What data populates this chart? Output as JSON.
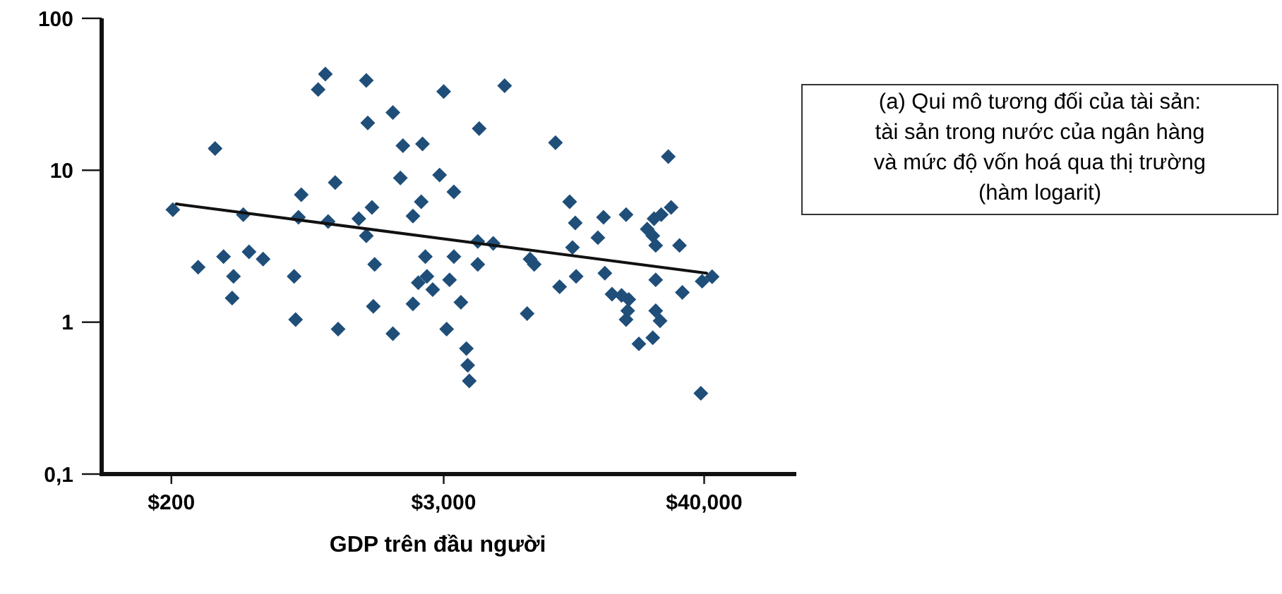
{
  "chart_data": {
    "type": "scatter",
    "xlabel": "GDP trên đầu người",
    "log": "xy",
    "xlim": [
      100,
      100000
    ],
    "ylim": [
      0.1,
      100
    ],
    "xticks": [
      {
        "value": 200,
        "label": "$200"
      },
      {
        "value": 3000,
        "label": "$3,000"
      },
      {
        "value": 40000,
        "label": "$40,000"
      }
    ],
    "yticks": [
      100,
      10,
      1,
      {
        "value": 0.1,
        "label": "0,1"
      }
    ],
    "grid": false,
    "annotations": [
      "(a) Qui mô tương đối của tài sản:\ntài sản trong nước của ngân hàng\nvà mức độ vốn hoá qua thị trường\n(hàm logarit)"
    ],
    "series": [
      {
        "color": "#1f4e79",
        "marker": "diamond",
        "x": [
          203,
          261,
          309,
          336,
          371,
          366,
          409,
          433,
          498,
          678,
          688,
          708,
          728,
          861,
          925,
          951,
          1020,
          1050,
          1290,
          1390,
          1410,
          1390,
          1470,
          1510,
          1490,
          1810,
          1810,
          1950,
          2000,
          2210,
          2400,
          2430,
          2500,
          2330,
          2690,
          2210,
          2540,
          3000,
          2880,
          3320,
          3180,
          3090,
          3320,
          3560,
          3760,
          3810,
          3870,
          4210,
          4210,
          4270,
          4910,
          5500,
          6880,
          7080,
          7380,
          9120,
          9500,
          10500,
          10800,
          11100,
          11200,
          13900,
          14700,
          14900,
          16000,
          17600,
          18900,
          18700,
          18400,
          18400,
          20900,
          22700,
          24300,
          26100,
          28800,
          24000,
          24700,
          24000,
          24700,
          25800,
          24700,
          28000,
          31300,
          32200,
          39200,
          43300,
          38700
        ],
        "values": [
          5.5,
          2.3,
          13.9,
          2.7,
          2.0,
          1.44,
          5.1,
          2.9,
          2.6,
          2.0,
          1.04,
          4.9,
          6.9,
          34,
          43,
          4.6,
          8.3,
          0.9,
          4.8,
          39,
          20.5,
          3.7,
          5.7,
          2.4,
          1.27,
          24,
          0.84,
          8.9,
          14.5,
          5.0,
          6.2,
          14.9,
          2.7,
          1.82,
          1.64,
          1.32,
          2.0,
          33,
          9.3,
          7.2,
          1.9,
          0.9,
          2.7,
          1.35,
          0.67,
          0.52,
          0.41,
          3.4,
          2.4,
          18.8,
          3.3,
          36,
          1.14,
          2.6,
          2.4,
          15.2,
          1.71,
          6.2,
          3.1,
          4.5,
          2.0,
          3.6,
          4.9,
          2.1,
          1.53,
          1.5,
          1.41,
          1.19,
          1.04,
          5.1,
          0.72,
          4.1,
          4.8,
          5.1,
          5.7,
          3.7,
          3.2,
          0.79,
          1.19,
          1.02,
          1.9,
          12.3,
          3.2,
          1.57,
          1.86,
          1.99,
          0.34
        ]
      },
      {
        "type": "line",
        "color": "#111111",
        "line_style": "solid",
        "marker": "none",
        "x": [
          210,
          41000
        ],
        "values": [
          6.0,
          2.1
        ]
      }
    ]
  }
}
